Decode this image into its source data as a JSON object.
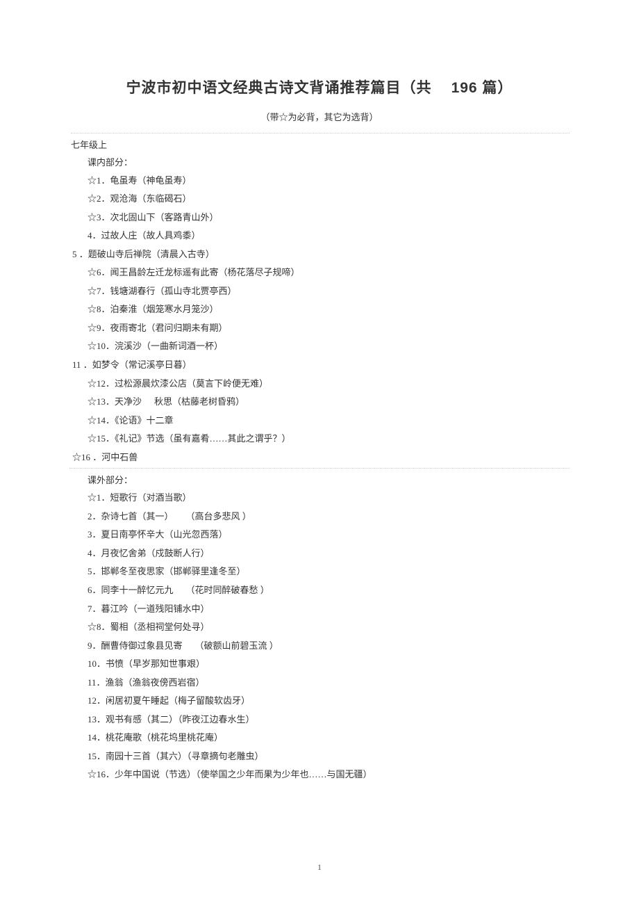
{
  "title_main": "宁波市初中语文经典古诗文背诵推荐篇目（共",
  "title_count": "196 篇）",
  "subtitle": "（带☆为必背，其它为选背）",
  "grade_label": "七年级上",
  "section_in_label": "课内部分：",
  "section_out_label": "课外部分：",
  "page_number": "1",
  "in_items": [
    {
      "star": true,
      "num": "1",
      "text": "龟虽寿（神龟虽寿）",
      "outdent": false
    },
    {
      "star": true,
      "num": "2",
      "text": "观沧海（东临碣石）",
      "outdent": false
    },
    {
      "star": true,
      "num": "3",
      "text": "次北固山下（客路青山外）",
      "outdent": false
    },
    {
      "star": false,
      "num": "4",
      "text": "过故人庄（故人具鸡黍）",
      "outdent": false
    },
    {
      "star": false,
      "num": "5",
      "text": "题破山寺后禅院（清晨入古寺）",
      "outdent": true
    },
    {
      "star": true,
      "num": "6",
      "text": "闻王昌龄左迁龙标遥有此寄（杨花落尽子规啼）",
      "outdent": false
    },
    {
      "star": true,
      "num": "7",
      "text": "钱塘湖春行（孤山寺北贾亭西）",
      "outdent": false
    },
    {
      "star": true,
      "num": "8",
      "text": "泊秦淮（烟笼寒水月笼沙）",
      "outdent": false
    },
    {
      "star": true,
      "num": "9",
      "text": "夜雨寄北（君问归期未有期）",
      "outdent": false
    },
    {
      "star": true,
      "num": "10",
      "text": "浣溪沙（一曲新词酒一杯）",
      "outdent": false
    },
    {
      "star": false,
      "num": "11",
      "text": "如梦令（常记溪亭日暮）",
      "outdent": true
    },
    {
      "star": true,
      "num": "12",
      "text": "过松源晨炊漆公店（莫言下岭便无难）",
      "outdent": false
    },
    {
      "star": true,
      "num": "13",
      "text": "天净沙",
      "extra": "秋思（枯藤老树昏鸦）",
      "outdent": false
    },
    {
      "star": true,
      "num": "14",
      "text": "《论语》十二章",
      "outdent": false
    },
    {
      "star": true,
      "num": "15",
      "text": "《礼记》节选（虽有嘉肴……其此之谓乎？）",
      "outdent": false
    },
    {
      "star": true,
      "num": "16",
      "text": "河中石兽",
      "outdent": true
    }
  ],
  "out_items": [
    {
      "star": true,
      "num": "1",
      "text": "短歌行（对酒当歌）"
    },
    {
      "star": false,
      "num": "2",
      "text": "杂诗七首（其一）",
      "extra": "（高台多悲风  ）"
    },
    {
      "star": false,
      "num": "3",
      "text": "夏日南亭怀辛大（山光忽西落）"
    },
    {
      "star": false,
      "num": "4",
      "text": "月夜忆舍弟（戍鼓断人行）"
    },
    {
      "star": false,
      "num": "5",
      "text": "邯郸冬至夜思家（邯郸驿里逢冬至）"
    },
    {
      "star": false,
      "num": "6",
      "text": "同李十一醉忆元九",
      "extra": "（花时同醉破春愁   ）"
    },
    {
      "star": false,
      "num": "7",
      "text": "暮江吟（一道残阳铺水中）"
    },
    {
      "star": true,
      "num": "8",
      "text": "蜀相（丞相祠堂何处寻）"
    },
    {
      "star": false,
      "num": "9",
      "text": "酬曹侍御过象县见寄",
      "extra": "（破额山前碧玉流   ）"
    },
    {
      "star": false,
      "num": "10",
      "text": "书愤（早岁那知世事艰）"
    },
    {
      "star": false,
      "num": "11",
      "text": "渔翁（渔翁夜傍西岩宿）"
    },
    {
      "star": false,
      "num": "12",
      "text": "闲居初夏午睡起（梅子留酸软齿牙）"
    },
    {
      "star": false,
      "num": "13",
      "text": "观书有感（其二）（昨夜江边春水生）"
    },
    {
      "star": false,
      "num": "14",
      "text": "桃花庵歌（桃花坞里桃花庵）"
    },
    {
      "star": false,
      "num": "15",
      "text": "南园十三首（其六）（寻章摘句老雕虫）"
    },
    {
      "star": true,
      "num": "16",
      "text": "少年中国说（节选）（使举国之少年而果为少年也……与国无疆）"
    }
  ]
}
